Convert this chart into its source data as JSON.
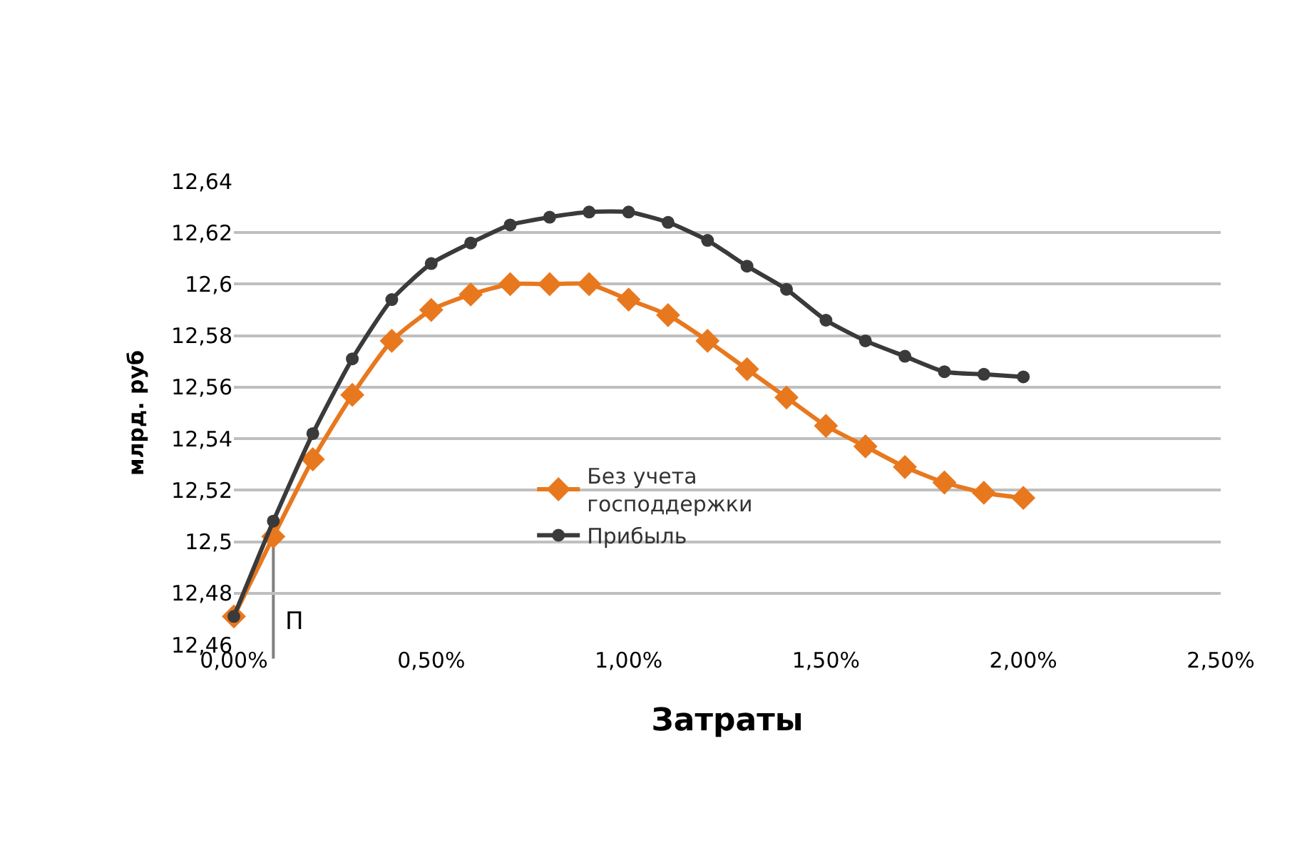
{
  "chart_data": {
    "type": "line",
    "xlabel": "Затраты",
    "ylabel": "млрд. руб",
    "x": [
      0,
      0.1,
      0.2,
      0.3,
      0.4,
      0.5,
      0.6,
      0.7,
      0.8,
      0.9,
      1.0,
      1.1,
      1.2,
      1.3,
      1.4,
      1.5,
      1.6,
      1.7,
      1.8,
      1.9,
      2.0
    ],
    "series": [
      {
        "name": "Без учета\nгосподдержки",
        "color": "#e8781e",
        "marker": "diamond",
        "values": [
          12.471,
          12.502,
          12.532,
          12.557,
          12.578,
          12.59,
          12.596,
          12.6,
          12.6,
          12.6,
          12.594,
          12.588,
          12.578,
          12.567,
          12.556,
          12.545,
          12.537,
          12.529,
          12.523,
          12.519,
          12.517
        ]
      },
      {
        "name": "Прибыль",
        "color": "#3a3a3a",
        "marker": "circle",
        "values": [
          12.471,
          12.508,
          12.542,
          12.571,
          12.594,
          12.608,
          12.616,
          12.623,
          12.626,
          12.628,
          12.628,
          12.624,
          12.617,
          12.607,
          12.598,
          12.586,
          12.578,
          12.572,
          12.566,
          12.565,
          12.564
        ]
      }
    ],
    "xlim": [
      0,
      2.5
    ],
    "xticks": [
      {
        "value": 0,
        "label": "0,00%"
      },
      {
        "value": 0.5,
        "label": "0,50%"
      },
      {
        "value": 1.0,
        "label": "1,00%"
      },
      {
        "value": 1.5,
        "label": "1,50%"
      },
      {
        "value": 2.0,
        "label": "2,00%"
      },
      {
        "value": 2.5,
        "label": "2,50%"
      }
    ],
    "ylim": [
      12.46,
      12.64
    ],
    "yticks": [
      {
        "value": 12.46,
        "label": "12,46"
      },
      {
        "value": 12.48,
        "label": "12,48"
      },
      {
        "value": 12.5,
        "label": "12,5"
      },
      {
        "value": 12.52,
        "label": "12,52"
      },
      {
        "value": 12.54,
        "label": "12,54"
      },
      {
        "value": 12.56,
        "label": "12,56"
      },
      {
        "value": 12.58,
        "label": "12,58"
      },
      {
        "value": 12.6,
        "label": "12,6"
      },
      {
        "value": 12.62,
        "label": "12,62"
      },
      {
        "value": 12.64,
        "label": "12,64"
      }
    ],
    "ref_lines": [
      {
        "axis": "x",
        "value": 0.1,
        "label": "П",
        "color": "#808080"
      }
    ],
    "grid": "y",
    "legend": "center",
    "line_style": "solid"
  }
}
